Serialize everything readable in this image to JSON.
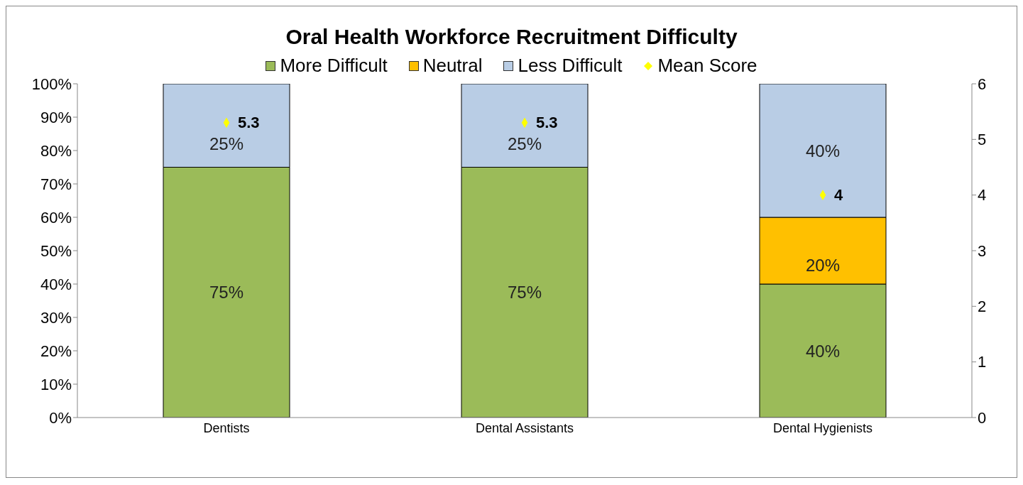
{
  "chart_data": {
    "type": "bar",
    "title": "Oral Health Workforce Recruitment Difficulty",
    "categories": [
      "Dentists",
      "Dental Assistants",
      "Dental Hygienists"
    ],
    "stacked": true,
    "legend": "top",
    "series": [
      {
        "name": "More Difficult",
        "color": "#9bbb59",
        "values": [
          75,
          75,
          40
        ],
        "value_labels": [
          "75%",
          "75%",
          "40%"
        ]
      },
      {
        "name": "Neutral",
        "color": "#ffc000",
        "values": [
          null,
          null,
          20
        ],
        "value_labels": [
          null,
          null,
          "20%"
        ]
      },
      {
        "name": "Less Difficult",
        "color": "#b9cde5",
        "values": [
          25,
          25,
          40
        ],
        "value_labels": [
          "25%",
          "25%",
          "40%"
        ]
      },
      {
        "name": "Mean Score",
        "type": "scatter",
        "axis": "y2",
        "marker": "diamond",
        "color": "#ffff00",
        "values": [
          5.3,
          5.3,
          4
        ],
        "value_labels": [
          "5.3",
          "5.3",
          "4"
        ]
      }
    ],
    "ylim": [
      0,
      100
    ],
    "yticks": [
      {
        "value": 0,
        "label": "0%"
      },
      {
        "value": 10,
        "label": "10%"
      },
      {
        "value": 20,
        "label": "20%"
      },
      {
        "value": 30,
        "label": "30%"
      },
      {
        "value": 40,
        "label": "40%"
      },
      {
        "value": 50,
        "label": "50%"
      },
      {
        "value": 60,
        "label": "60%"
      },
      {
        "value": 70,
        "label": "70%"
      },
      {
        "value": 80,
        "label": "80%"
      },
      {
        "value": 90,
        "label": "90%"
      },
      {
        "value": 100,
        "label": "100%"
      }
    ],
    "y2lim": [
      0,
      6
    ],
    "y2ticks": [
      0,
      1,
      2,
      3,
      4,
      5,
      6
    ]
  }
}
